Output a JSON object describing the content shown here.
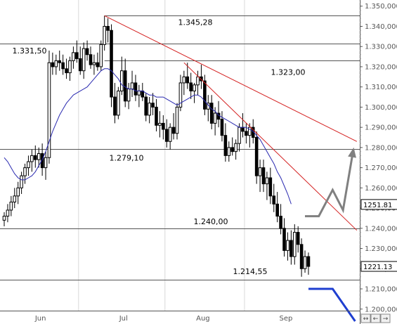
{
  "chart_data": {
    "type": "candlestick",
    "y_axis": {
      "ticks": [
        "1.350,000",
        "1.340,000",
        "1.330,000",
        "1.320,000",
        "1.310,000",
        "1.300,000",
        "1.290,000",
        "1.280,000",
        "1.270,000",
        "1.260,000",
        "1.250,000",
        "1.240,000",
        "1.230,000",
        "1.220,000",
        "1.210,000",
        "1.200,000"
      ],
      "tick_values": [
        1350,
        1340,
        1330,
        1320,
        1310,
        1300,
        1290,
        1280,
        1270,
        1260,
        1250,
        1240,
        1230,
        1220,
        1210,
        1200
      ],
      "ylim": [
        1194,
        1352
      ]
    },
    "x_axis": {
      "labels": [
        "Jun",
        "Jul",
        "Aug",
        "Sep"
      ],
      "label_bars": [
        10.5,
        34.5,
        57.5,
        81.5
      ],
      "separator_bars": [
        21.5,
        46.5,
        69.5
      ],
      "bar_count": 102
    },
    "horizontal_levels": [
      {
        "value": 1345.28,
        "label": "1.345,28",
        "start_bar": 29
      },
      {
        "value": 1331.5,
        "label": "1.331,50",
        "start_bar": 0
      },
      {
        "value": 1323.0,
        "label": "1.323,00",
        "start_bar": 29
      },
      {
        "value": 1279.1,
        "label": "1.279,10",
        "start_bar": 0
      },
      {
        "value": 1240.0,
        "label": "1.240,00",
        "start_bar": 0
      },
      {
        "value": 1214.55,
        "label": "1.214,55",
        "start_bar": 0
      }
    ],
    "trendlines": [
      {
        "color": "#d42020",
        "from": {
          "bar": 29,
          "value": 1345.28
        },
        "to": {
          "bar": 102,
          "value": 1283
        }
      },
      {
        "color": "#d42020",
        "from": {
          "bar": 52,
          "value": 1322
        },
        "to": {
          "bar": 102,
          "value": 1239
        }
      }
    ],
    "last_value_boxes": [
      {
        "label": "1251.81",
        "value": 1251.81
      },
      {
        "label": "1221.13",
        "value": 1221.13
      }
    ],
    "projections": [
      {
        "color": "#808080",
        "arrow": true,
        "points": [
          [
            87,
            1246
          ],
          [
            91,
            1246
          ],
          [
            95,
            1259
          ],
          [
            98,
            1249
          ],
          [
            101,
            1279
          ]
        ]
      },
      {
        "color": "#1f3fd0",
        "arrow": false,
        "points": [
          [
            88,
            1210
          ],
          [
            95,
            1210
          ],
          [
            101.5,
            1194
          ]
        ]
      }
    ],
    "moving_average": {
      "color": "#2a2ab0",
      "values": [
        1275,
        1273,
        1270,
        1267,
        1265,
        1264,
        1264,
        1265,
        1266,
        1268,
        1271,
        1274,
        1278,
        1283,
        1288,
        1292,
        1296,
        1299,
        1302,
        1304,
        1306,
        1307,
        1308,
        1309,
        1310,
        1312,
        1314,
        1316,
        1318,
        1319,
        1319,
        1318,
        1316,
        1314,
        1311,
        1310,
        1309,
        1309,
        1308,
        1308,
        1308,
        1307,
        1306,
        1306,
        1305,
        1305,
        1305,
        1304,
        1303,
        1302,
        1301,
        1302,
        1303,
        1304,
        1305,
        1306,
        1306,
        1305,
        1303,
        1301,
        1299,
        1298,
        1296,
        1295,
        1294,
        1293,
        1292,
        1291,
        1290,
        1290,
        1290,
        1289,
        1288,
        1286,
        1284,
        1281,
        1278,
        1275,
        1272,
        1268,
        1265,
        1261,
        1257,
        1252
      ]
    },
    "candles": [
      {
        "o": 1244,
        "h": 1248,
        "l": 1241,
        "c": 1246
      },
      {
        "o": 1246,
        "h": 1252,
        "l": 1243,
        "c": 1249
      },
      {
        "o": 1249,
        "h": 1256,
        "l": 1246,
        "c": 1253
      },
      {
        "o": 1253,
        "h": 1260,
        "l": 1250,
        "c": 1256
      },
      {
        "o": 1256,
        "h": 1263,
        "l": 1252,
        "c": 1260
      },
      {
        "o": 1260,
        "h": 1268,
        "l": 1257,
        "c": 1266
      },
      {
        "o": 1266,
        "h": 1272,
        "l": 1262,
        "c": 1270
      },
      {
        "o": 1270,
        "h": 1276,
        "l": 1266,
        "c": 1273
      },
      {
        "o": 1273,
        "h": 1279,
        "l": 1268,
        "c": 1276
      },
      {
        "o": 1276,
        "h": 1281,
        "l": 1270,
        "c": 1274
      },
      {
        "o": 1274,
        "h": 1280,
        "l": 1270,
        "c": 1277
      },
      {
        "o": 1277,
        "h": 1282,
        "l": 1266,
        "c": 1270
      },
      {
        "o": 1270,
        "h": 1278,
        "l": 1264,
        "c": 1275
      },
      {
        "o": 1275,
        "h": 1328,
        "l": 1272,
        "c": 1322
      },
      {
        "o": 1322,
        "h": 1327,
        "l": 1316,
        "c": 1320
      },
      {
        "o": 1320,
        "h": 1326,
        "l": 1316,
        "c": 1323
      },
      {
        "o": 1323,
        "h": 1328,
        "l": 1318,
        "c": 1322
      },
      {
        "o": 1322,
        "h": 1326,
        "l": 1316,
        "c": 1319
      },
      {
        "o": 1319,
        "h": 1324,
        "l": 1314,
        "c": 1317
      },
      {
        "o": 1317,
        "h": 1325,
        "l": 1313,
        "c": 1323
      },
      {
        "o": 1323,
        "h": 1330,
        "l": 1319,
        "c": 1327
      },
      {
        "o": 1327,
        "h": 1333,
        "l": 1322,
        "c": 1324
      },
      {
        "o": 1324,
        "h": 1330,
        "l": 1316,
        "c": 1318
      },
      {
        "o": 1318,
        "h": 1332,
        "l": 1314,
        "c": 1329
      },
      {
        "o": 1329,
        "h": 1333,
        "l": 1323,
        "c": 1326
      },
      {
        "o": 1326,
        "h": 1330,
        "l": 1319,
        "c": 1321
      },
      {
        "o": 1321,
        "h": 1326,
        "l": 1316,
        "c": 1322
      },
      {
        "o": 1322,
        "h": 1327,
        "l": 1318,
        "c": 1320
      },
      {
        "o": 1320,
        "h": 1333,
        "l": 1318,
        "c": 1331
      },
      {
        "o": 1331,
        "h": 1345.28,
        "l": 1328,
        "c": 1340
      },
      {
        "o": 1340,
        "h": 1344,
        "l": 1332,
        "c": 1338
      },
      {
        "o": 1338,
        "h": 1341,
        "l": 1300,
        "c": 1305
      },
      {
        "o": 1305,
        "h": 1312,
        "l": 1292,
        "c": 1296
      },
      {
        "o": 1296,
        "h": 1310,
        "l": 1294,
        "c": 1308
      },
      {
        "o": 1308,
        "h": 1325,
        "l": 1306,
        "c": 1318
      },
      {
        "o": 1318,
        "h": 1324,
        "l": 1300,
        "c": 1303
      },
      {
        "o": 1303,
        "h": 1312,
        "l": 1299,
        "c": 1309
      },
      {
        "o": 1309,
        "h": 1318,
        "l": 1305,
        "c": 1312
      },
      {
        "o": 1312,
        "h": 1316,
        "l": 1303,
        "c": 1306
      },
      {
        "o": 1306,
        "h": 1311,
        "l": 1300,
        "c": 1308
      },
      {
        "o": 1308,
        "h": 1312,
        "l": 1303,
        "c": 1305
      },
      {
        "o": 1305,
        "h": 1307,
        "l": 1293,
        "c": 1296
      },
      {
        "o": 1296,
        "h": 1305,
        "l": 1292,
        "c": 1302
      },
      {
        "o": 1302,
        "h": 1307,
        "l": 1296,
        "c": 1300
      },
      {
        "o": 1300,
        "h": 1304,
        "l": 1288,
        "c": 1291
      },
      {
        "o": 1291,
        "h": 1298,
        "l": 1285,
        "c": 1292
      },
      {
        "o": 1292,
        "h": 1296,
        "l": 1284,
        "c": 1289
      },
      {
        "o": 1289,
        "h": 1294,
        "l": 1280,
        "c": 1283
      },
      {
        "o": 1283,
        "h": 1292,
        "l": 1279,
        "c": 1290
      },
      {
        "o": 1290,
        "h": 1297,
        "l": 1284,
        "c": 1287
      },
      {
        "o": 1287,
        "h": 1302,
        "l": 1284,
        "c": 1300
      },
      {
        "o": 1300,
        "h": 1316,
        "l": 1298,
        "c": 1312
      },
      {
        "o": 1312,
        "h": 1318,
        "l": 1306,
        "c": 1315
      },
      {
        "o": 1315,
        "h": 1322,
        "l": 1309,
        "c": 1312
      },
      {
        "o": 1312,
        "h": 1317,
        "l": 1304,
        "c": 1308
      },
      {
        "o": 1308,
        "h": 1312,
        "l": 1302,
        "c": 1311
      },
      {
        "o": 1311,
        "h": 1318,
        "l": 1306,
        "c": 1315
      },
      {
        "o": 1315,
        "h": 1321,
        "l": 1309,
        "c": 1313
      },
      {
        "o": 1313,
        "h": 1316,
        "l": 1296,
        "c": 1299
      },
      {
        "o": 1299,
        "h": 1306,
        "l": 1293,
        "c": 1302
      },
      {
        "o": 1302,
        "h": 1306,
        "l": 1289,
        "c": 1292
      },
      {
        "o": 1292,
        "h": 1300,
        "l": 1286,
        "c": 1297
      },
      {
        "o": 1297,
        "h": 1303,
        "l": 1290,
        "c": 1294
      },
      {
        "o": 1294,
        "h": 1298,
        "l": 1283,
        "c": 1286
      },
      {
        "o": 1286,
        "h": 1292,
        "l": 1273,
        "c": 1276
      },
      {
        "o": 1276,
        "h": 1283,
        "l": 1273,
        "c": 1280
      },
      {
        "o": 1280,
        "h": 1285,
        "l": 1276,
        "c": 1278
      },
      {
        "o": 1278,
        "h": 1284,
        "l": 1274,
        "c": 1282
      },
      {
        "o": 1282,
        "h": 1292,
        "l": 1278,
        "c": 1290
      },
      {
        "o": 1290,
        "h": 1297,
        "l": 1285,
        "c": 1288
      },
      {
        "o": 1288,
        "h": 1292,
        "l": 1282,
        "c": 1286
      },
      {
        "o": 1286,
        "h": 1292,
        "l": 1280,
        "c": 1290
      },
      {
        "o": 1290,
        "h": 1294,
        "l": 1282,
        "c": 1285
      },
      {
        "o": 1285,
        "h": 1288,
        "l": 1262,
        "c": 1266
      },
      {
        "o": 1266,
        "h": 1274,
        "l": 1258,
        "c": 1270
      },
      {
        "o": 1270,
        "h": 1274,
        "l": 1258,
        "c": 1262
      },
      {
        "o": 1262,
        "h": 1268,
        "l": 1254,
        "c": 1265
      },
      {
        "o": 1265,
        "h": 1270,
        "l": 1252,
        "c": 1256
      },
      {
        "o": 1256,
        "h": 1262,
        "l": 1248,
        "c": 1252
      },
      {
        "o": 1252,
        "h": 1258,
        "l": 1243,
        "c": 1246
      },
      {
        "o": 1246,
        "h": 1252,
        "l": 1237,
        "c": 1240
      },
      {
        "o": 1240,
        "h": 1245,
        "l": 1226,
        "c": 1229
      },
      {
        "o": 1229,
        "h": 1238,
        "l": 1224,
        "c": 1234
      },
      {
        "o": 1234,
        "h": 1239,
        "l": 1222,
        "c": 1226
      },
      {
        "o": 1226,
        "h": 1242,
        "l": 1222,
        "c": 1238
      },
      {
        "o": 1238,
        "h": 1241,
        "l": 1228,
        "c": 1232
      },
      {
        "o": 1232,
        "h": 1235,
        "l": 1216,
        "c": 1220
      },
      {
        "o": 1220,
        "h": 1229,
        "l": 1218,
        "c": 1226
      },
      {
        "o": 1226,
        "h": 1228,
        "l": 1217,
        "c": 1221.13
      }
    ]
  }
}
